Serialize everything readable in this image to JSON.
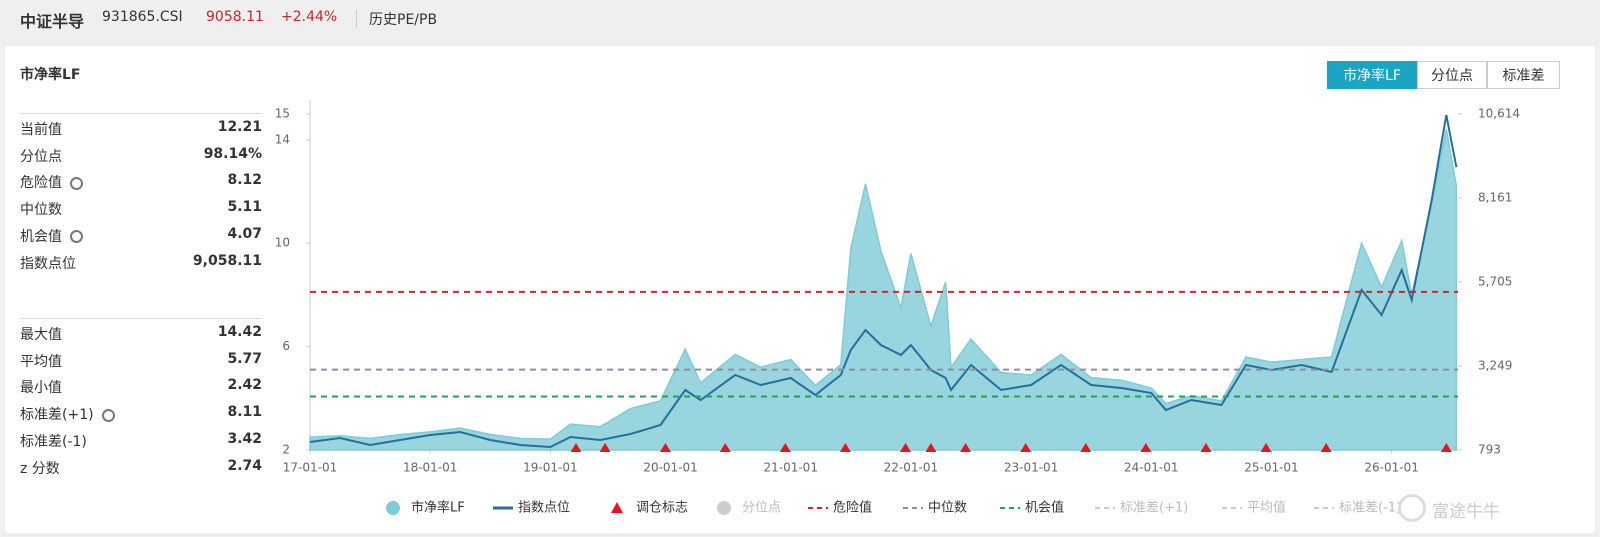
{
  "header": {
    "name": "中证半导",
    "code": "931865.CSI",
    "price": "9058.11",
    "change": "+2.44%",
    "tab": "历史PE/PB"
  },
  "panel": {
    "title": "市净率LF",
    "buttons": [
      "市净率LF",
      "分位点",
      "标准差"
    ],
    "stats": [
      [
        [
          "当前值",
          "12.21"
        ],
        [
          "分位点",
          "98.14%"
        ],
        [
          "危险值",
          "8.12"
        ],
        [
          "中位数",
          "5.11"
        ],
        [
          "机会值",
          "4.07"
        ],
        [
          "指数点位",
          "9,058.11"
        ]
      ],
      [
        [
          "最大值",
          "14.42"
        ],
        [
          "平均值",
          "5.77"
        ],
        [
          "最小值",
          "2.42"
        ],
        [
          "标准差(+1)",
          "8.11"
        ],
        [
          "标准差(-1)",
          "3.42"
        ],
        [
          "z 分数",
          "2.74"
        ]
      ]
    ],
    "watermark": "富途牛牛"
  },
  "chart_data": {
    "type": "area_line",
    "x": [
      "17-01-01",
      "17-04-01",
      "17-07-01",
      "17-10-01",
      "18-01-01",
      "18-04-01",
      "18-07-01",
      "18-10-01",
      "19-01-01",
      "19-03-01",
      "19-06-01",
      "19-09-01",
      "19-12-01",
      "20-02-15",
      "20-04-01",
      "20-07-15",
      "20-10-01",
      "21-01-01",
      "21-03-15",
      "21-06-01",
      "21-07-01",
      "21-08-15",
      "21-10-01",
      "21-12-01",
      "22-01-01",
      "22-03-01",
      "22-04-15",
      "22-05-01",
      "22-07-01",
      "22-10-01",
      "23-01-01",
      "23-04-01",
      "23-07-01",
      "23-10-01",
      "24-01-01",
      "24-02-15",
      "24-05-01",
      "24-08-01",
      "24-10-15",
      "25-01-01",
      "25-04-01",
      "25-07-01",
      "25-10-01",
      "25-12-01",
      "26-02-01",
      "26-03-01",
      "26-05-01",
      "26-06-15",
      "26-07-15"
    ],
    "series": [
      {
        "name": "市净率LF",
        "color": "#7fcbd6",
        "axis": "y",
        "values": [
          2.5,
          2.55,
          2.45,
          2.6,
          2.7,
          2.85,
          2.6,
          2.45,
          2.42,
          3.0,
          2.9,
          3.6,
          3.9,
          5.9,
          4.6,
          5.7,
          5.2,
          5.5,
          4.5,
          5.3,
          9.8,
          12.3,
          9.7,
          7.5,
          9.6,
          6.8,
          8.5,
          5.2,
          6.3,
          5.0,
          4.9,
          5.7,
          4.8,
          4.7,
          4.4,
          3.8,
          4.1,
          3.9,
          5.6,
          5.4,
          5.5,
          5.6,
          10.0,
          8.3,
          10.1,
          8.0,
          11.5,
          14.42,
          12.21
        ]
      },
      {
        "name": "指数点位",
        "color": "#256f9c",
        "axis": "y2",
        "values": [
          1027,
          1144,
          939,
          1085,
          1231,
          1319,
          1085,
          939,
          881,
          1173,
          1085,
          1261,
          1524,
          2547,
          2254,
          2985,
          2693,
          2898,
          2400,
          2985,
          3716,
          4300,
          3862,
          3570,
          3862,
          3131,
          2898,
          2547,
          3277,
          2547,
          2693,
          3277,
          2693,
          2605,
          2459,
          1962,
          2254,
          2108,
          3277,
          3131,
          3277,
          3073,
          5470,
          4739,
          6054,
          5177,
          8100,
          10585,
          9058
        ]
      }
    ],
    "markers": {
      "name": "调仓标志",
      "color": "#e8141b",
      "x": [
        "19-03-18",
        "19-06-15",
        "19-12-16",
        "20-06-15",
        "20-12-15",
        "21-06-15",
        "21-12-15",
        "22-03-01",
        "22-06-15",
        "22-12-15",
        "23-06-15",
        "23-12-15",
        "24-06-15",
        "24-12-15",
        "25-06-15",
        "26-06-15"
      ]
    },
    "reference_lines": [
      {
        "name": "危险值",
        "value": 8.12,
        "color": "#d0262b"
      },
      {
        "name": "中位数",
        "value": 5.11,
        "color": "#8a8fa3"
      },
      {
        "name": "机会值",
        "value": 4.07,
        "color": "#25a05a"
      }
    ],
    "inactive_legend": [
      "分位点",
      "标准差(+1)",
      "平均值",
      "标准差(-1)"
    ],
    "xlim": [
      "17-01-01",
      "26-07-20"
    ],
    "xticks": [
      "17-01-01",
      "18-01-01",
      "19-01-01",
      "20-01-01",
      "21-01-01",
      "22-01-01",
      "23-01-01",
      "24-01-01",
      "25-01-01",
      "26-01-01"
    ],
    "ylim": [
      2,
      15
    ],
    "yticks": [
      2,
      6,
      10,
      14,
      15
    ],
    "y2lim": [
      793,
      10614
    ],
    "y2ticks": [
      793,
      {
        "value": 3249,
        "label": "3,249"
      },
      {
        "value": 5705,
        "label": "5,705"
      },
      {
        "value": 8161,
        "label": "8,161"
      },
      {
        "value": 10614,
        "label": "10,614"
      }
    ]
  }
}
